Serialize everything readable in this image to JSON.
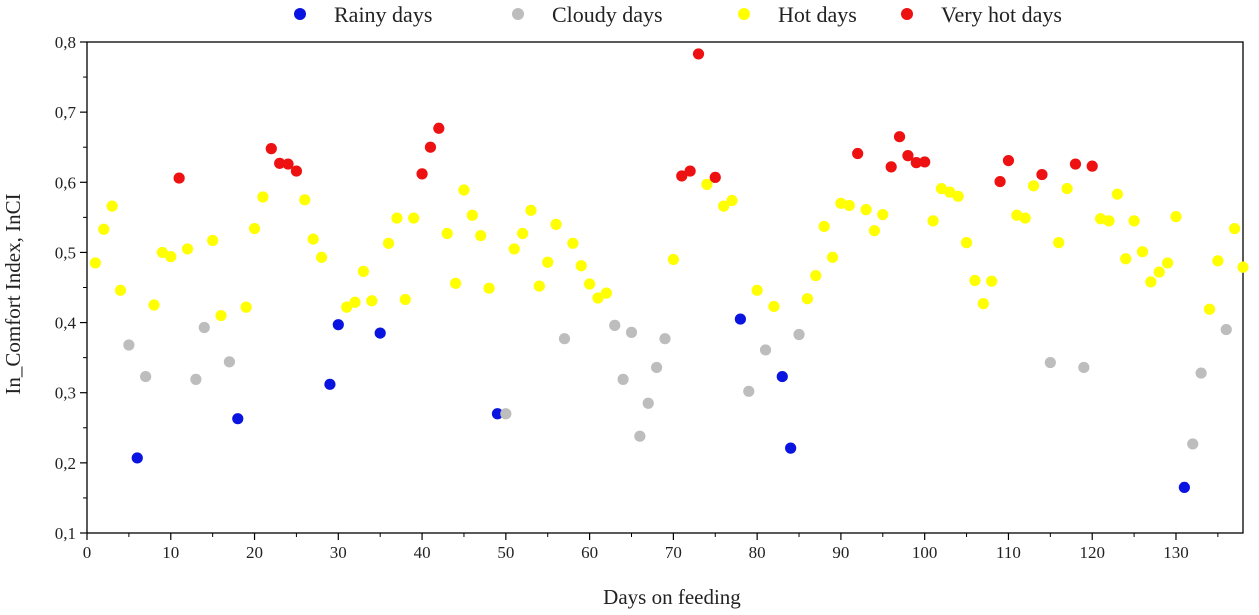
{
  "chart_data": {
    "type": "scatter",
    "xlabel": "Days on feeding",
    "ylabel": "In_Comfort Index, InCI",
    "xlim": [
      0,
      138
    ],
    "ylim": [
      0.1,
      0.8
    ],
    "x_ticks": [
      0,
      10,
      20,
      30,
      40,
      50,
      60,
      70,
      80,
      90,
      100,
      110,
      120,
      130
    ],
    "x_tick_labels": [
      "0",
      "10",
      "20",
      "30",
      "40",
      "50",
      "60",
      "70",
      "80",
      "90",
      "100",
      "110",
      "120",
      "130"
    ],
    "y_ticks": [
      0.1,
      0.2,
      0.3,
      0.4,
      0.5,
      0.6,
      0.7,
      0.8
    ],
    "y_tick_labels": [
      "0,1",
      "0,2",
      "0,3",
      "0,4",
      "0,5",
      "0,6",
      "0,7",
      "0,8"
    ],
    "grid": false,
    "legend_position": "top-center",
    "series": [
      {
        "name": "Rainy days",
        "color": "#0a14e0",
        "points": [
          [
            6,
            0.207
          ],
          [
            18,
            0.263
          ],
          [
            29,
            0.312
          ],
          [
            30,
            0.397
          ],
          [
            35,
            0.385
          ],
          [
            49,
            0.27
          ],
          [
            78,
            0.405
          ],
          [
            83,
            0.323
          ],
          [
            84,
            0.221
          ],
          [
            131,
            0.165
          ]
        ]
      },
      {
        "name": "Cloudy days",
        "color": "#bdbdbd",
        "points": [
          [
            5,
            0.368
          ],
          [
            7,
            0.323
          ],
          [
            13,
            0.319
          ],
          [
            14,
            0.393
          ],
          [
            17,
            0.344
          ],
          [
            50,
            0.27
          ],
          [
            57,
            0.377
          ],
          [
            63,
            0.396
          ],
          [
            64,
            0.319
          ],
          [
            65,
            0.386
          ],
          [
            66,
            0.238
          ],
          [
            67,
            0.285
          ],
          [
            68,
            0.336
          ],
          [
            69,
            0.377
          ],
          [
            79,
            0.302
          ],
          [
            81,
            0.361
          ],
          [
            85,
            0.383
          ],
          [
            115,
            0.343
          ],
          [
            119,
            0.336
          ],
          [
            132,
            0.227
          ],
          [
            133,
            0.328
          ],
          [
            136,
            0.39
          ]
        ]
      },
      {
        "name": "Hot days",
        "color": "#ffff00",
        "points": [
          [
            1,
            0.485
          ],
          [
            2,
            0.533
          ],
          [
            3,
            0.566
          ],
          [
            4,
            0.446
          ],
          [
            8,
            0.425
          ],
          [
            9,
            0.5
          ],
          [
            10,
            0.494
          ],
          [
            12,
            0.505
          ],
          [
            15,
            0.517
          ],
          [
            16,
            0.41
          ],
          [
            19,
            0.422
          ],
          [
            20,
            0.534
          ],
          [
            21,
            0.579
          ],
          [
            26,
            0.575
          ],
          [
            27,
            0.519
          ],
          [
            28,
            0.493
          ],
          [
            31,
            0.422
          ],
          [
            32,
            0.429
          ],
          [
            33,
            0.473
          ],
          [
            34,
            0.431
          ],
          [
            36,
            0.513
          ],
          [
            37,
            0.549
          ],
          [
            38,
            0.433
          ],
          [
            39,
            0.549
          ],
          [
            43,
            0.527
          ],
          [
            44,
            0.456
          ],
          [
            45,
            0.589
          ],
          [
            46,
            0.553
          ],
          [
            47,
            0.524
          ],
          [
            48,
            0.449
          ],
          [
            51,
            0.505
          ],
          [
            52,
            0.527
          ],
          [
            53,
            0.56
          ],
          [
            54,
            0.452
          ],
          [
            55,
            0.486
          ],
          [
            56,
            0.54
          ],
          [
            58,
            0.513
          ],
          [
            59,
            0.481
          ],
          [
            60,
            0.455
          ],
          [
            61,
            0.435
          ],
          [
            62,
            0.442
          ],
          [
            70,
            0.49
          ],
          [
            74,
            0.597
          ],
          [
            76,
            0.566
          ],
          [
            77,
            0.574
          ],
          [
            80,
            0.446
          ],
          [
            82,
            0.423
          ],
          [
            86,
            0.434
          ],
          [
            87,
            0.467
          ],
          [
            88,
            0.537
          ],
          [
            89,
            0.493
          ],
          [
            90,
            0.57
          ],
          [
            91,
            0.567
          ],
          [
            93,
            0.561
          ],
          [
            94,
            0.531
          ],
          [
            95,
            0.554
          ],
          [
            101,
            0.545
          ],
          [
            102,
            0.591
          ],
          [
            103,
            0.586
          ],
          [
            104,
            0.58
          ],
          [
            105,
            0.514
          ],
          [
            106,
            0.46
          ],
          [
            107,
            0.427
          ],
          [
            108,
            0.459
          ],
          [
            111,
            0.553
          ],
          [
            112,
            0.549
          ],
          [
            113,
            0.595
          ],
          [
            116,
            0.514
          ],
          [
            117,
            0.591
          ],
          [
            121,
            0.548
          ],
          [
            122,
            0.545
          ],
          [
            123,
            0.583
          ],
          [
            124,
            0.491
          ],
          [
            125,
            0.545
          ],
          [
            126,
            0.501
          ],
          [
            127,
            0.458
          ],
          [
            128,
            0.472
          ],
          [
            129,
            0.485
          ],
          [
            130,
            0.551
          ],
          [
            134,
            0.419
          ],
          [
            135,
            0.488
          ],
          [
            137,
            0.534
          ],
          [
            138,
            0.479
          ]
        ]
      },
      {
        "name": "Very hot days",
        "color": "#ee1111",
        "points": [
          [
            11,
            0.606
          ],
          [
            22,
            0.648
          ],
          [
            23,
            0.627
          ],
          [
            24,
            0.626
          ],
          [
            25,
            0.616
          ],
          [
            40,
            0.612
          ],
          [
            41,
            0.65
          ],
          [
            42,
            0.677
          ],
          [
            71,
            0.609
          ],
          [
            72,
            0.616
          ],
          [
            73,
            0.783
          ],
          [
            75,
            0.607
          ],
          [
            92,
            0.641
          ],
          [
            96,
            0.622
          ],
          [
            97,
            0.665
          ],
          [
            98,
            0.638
          ],
          [
            99,
            0.628
          ],
          [
            100,
            0.629
          ],
          [
            109,
            0.601
          ],
          [
            110,
            0.631
          ],
          [
            114,
            0.611
          ],
          [
            118,
            0.626
          ],
          [
            120,
            0.623
          ]
        ]
      }
    ]
  }
}
